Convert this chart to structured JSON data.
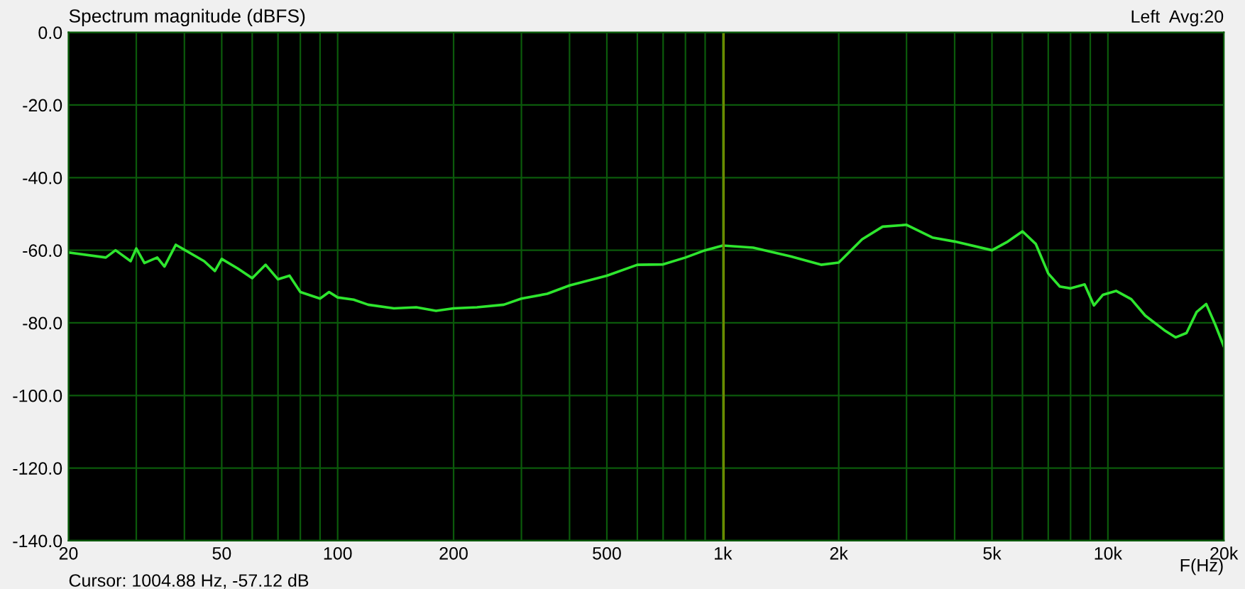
{
  "chart_data": {
    "type": "line",
    "title": "Spectrum magnitude (dBFS)",
    "xlabel": "F(Hz)",
    "annotations": [
      "Left  Avg:20",
      "Cursor: 1004.88 Hz, -57.12 dB"
    ],
    "log": "x",
    "grid": true,
    "marker": "none",
    "line_style": "solid",
    "xlim": [
      20,
      20000
    ],
    "ylim": [
      -140,
      0
    ],
    "xticks": [
      {
        "value": 20,
        "label": "20"
      },
      {
        "value": 30,
        "label": null
      },
      {
        "value": 40,
        "label": null
      },
      {
        "value": 50,
        "label": "50"
      },
      {
        "value": 60,
        "label": null
      },
      {
        "value": 70,
        "label": null
      },
      {
        "value": 80,
        "label": null
      },
      {
        "value": 90,
        "label": null
      },
      {
        "value": 100,
        "label": "100"
      },
      {
        "value": 200,
        "label": "200"
      },
      {
        "value": 300,
        "label": null
      },
      {
        "value": 400,
        "label": null
      },
      {
        "value": 500,
        "label": "500"
      },
      {
        "value": 600,
        "label": null
      },
      {
        "value": 700,
        "label": null
      },
      {
        "value": 800,
        "label": null
      },
      {
        "value": 900,
        "label": null
      },
      {
        "value": 1000,
        "label": "1k"
      },
      {
        "value": 2000,
        "label": "2k"
      },
      {
        "value": 3000,
        "label": null
      },
      {
        "value": 4000,
        "label": null
      },
      {
        "value": 5000,
        "label": "5k"
      },
      {
        "value": 6000,
        "label": null
      },
      {
        "value": 7000,
        "label": null
      },
      {
        "value": 8000,
        "label": null
      },
      {
        "value": 9000,
        "label": null
      },
      {
        "value": 10000,
        "label": "10k"
      },
      {
        "value": 20000,
        "label": "20k"
      }
    ],
    "yticks": [
      {
        "value": 0,
        "label": "0.0"
      },
      {
        "value": -20,
        "label": "-20.0"
      },
      {
        "value": -40,
        "label": "-40.0"
      },
      {
        "value": -60,
        "label": "-60.0"
      },
      {
        "value": -80,
        "label": "-80.0"
      },
      {
        "value": -100,
        "label": "-100.0"
      },
      {
        "value": -120,
        "label": "-120.0"
      },
      {
        "value": -140,
        "label": "-140.0"
      }
    ],
    "ref_lines": [
      {
        "axis": "x",
        "value": 1004.88,
        "color": "#6b8a00"
      }
    ],
    "series": [
      {
        "color": "#2ee62e",
        "x": [
          20,
          25,
          26.5,
          29,
          30,
          31.5,
          34,
          35.5,
          38,
          45,
          48,
          50,
          55,
          60,
          65,
          70,
          75,
          80,
          90,
          95,
          100,
          110,
          120,
          140,
          160,
          180,
          200,
          230,
          270,
          300,
          350,
          400,
          500,
          600,
          700,
          800,
          900,
          1000,
          1200,
          1500,
          1800,
          2000,
          2300,
          2600,
          3000,
          3500,
          4000,
          5000,
          5500,
          6000,
          6500,
          7000,
          7500,
          8000,
          8700,
          9200,
          9700,
          10500,
          11500,
          12500,
          14000,
          15000,
          16000,
          17000,
          18000,
          19000,
          20000
        ],
        "values": [
          -60.6,
          -62,
          -60,
          -63,
          -59.5,
          -63.5,
          -62,
          -64.5,
          -58.5,
          -63,
          -65.7,
          -62.4,
          -65,
          -67.7,
          -64,
          -68,
          -67,
          -71.5,
          -73.3,
          -71.5,
          -73,
          -73.6,
          -75,
          -76,
          -75.7,
          -76.7,
          -76,
          -75.7,
          -75,
          -73.3,
          -72,
          -69.7,
          -67,
          -64,
          -63.9,
          -62,
          -60,
          -58.7,
          -59.3,
          -61.7,
          -64,
          -63.4,
          -57,
          -53.5,
          -53,
          -56.5,
          -57.6,
          -60,
          -57.6,
          -54.8,
          -58.3,
          -66.4,
          -70,
          -70.5,
          -69.4,
          -75.2,
          -72.3,
          -71.2,
          -73.5,
          -78,
          -82,
          -84,
          -82.8,
          -77,
          -74.8,
          -80.5,
          -86.5
        ]
      }
    ]
  }
}
